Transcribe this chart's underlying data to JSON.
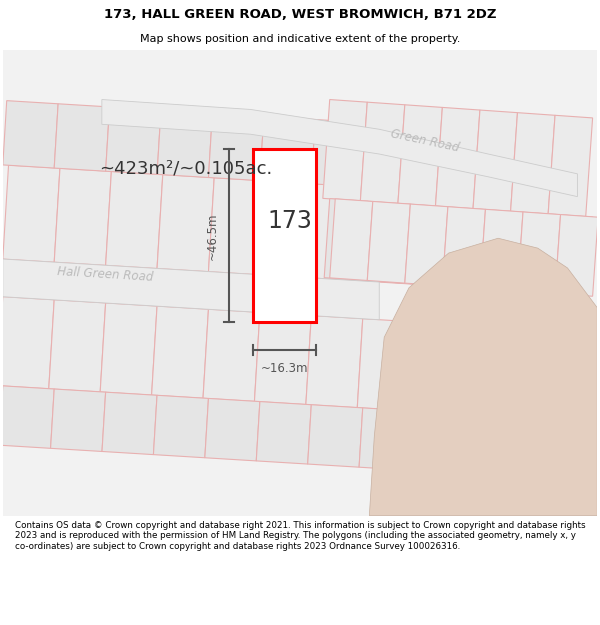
{
  "title_line1": "173, HALL GREEN ROAD, WEST BROMWICH, B71 2DZ",
  "title_line2": "Map shows position and indicative extent of the property.",
  "footer_text": "Contains OS data © Crown copyright and database right 2021. This information is subject to Crown copyright and database rights 2023 and is reproduced with the permission of HM Land Registry. The polygons (including the associated geometry, namely x, y co-ordinates) are subject to Crown copyright and database rights 2023 Ordnance Survey 100026316.",
  "area_label": "~423m²/~0.105ac.",
  "number_label": "173",
  "dim_height": "~46.5m",
  "dim_width": "~16.3m",
  "road_label1": "Hall Green Road",
  "road_label2": "Green Road",
  "bg_color": "#ffffff",
  "map_bg": "#f2f2f2",
  "plot_fill_color": "#e8e8e8",
  "plot_outline_color": "#ff0000",
  "dim_line_color": "#555555",
  "road_stripe_color": "#e8b0b0",
  "road_label_color": "#bbbbbb",
  "beige_area_color": "#e4cfc0",
  "prop_fill_color": "#ffffff",
  "number_color": "#333333",
  "area_label_color": "#333333"
}
